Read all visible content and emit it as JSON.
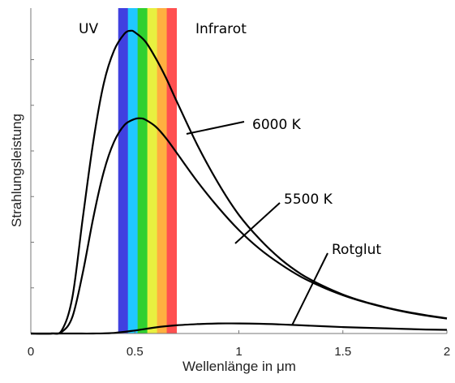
{
  "chart_data": {
    "type": "line",
    "title": "",
    "xlabel": "Wellenlänge in μm",
    "ylabel": "Strahlungsleistung",
    "xlim": [
      0,
      2
    ],
    "ylim": [
      0,
      1
    ],
    "x_ticks": [
      "0",
      "0.5",
      "1",
      "1.5",
      "2"
    ],
    "y_tick_values": [
      0.15,
      0.3,
      0.45,
      0.6,
      0.75,
      0.9
    ],
    "y_tick_labels_visible": false,
    "grid": false,
    "legend": "none",
    "spectrum_band": {
      "x_range": [
        0.42,
        0.7
      ],
      "colors": [
        "#4040e0",
        "#20c8ff",
        "#30d030",
        "#e8f040",
        "#ffb040",
        "#ff5050"
      ]
    },
    "series": [
      {
        "name": "6000 K",
        "x": [
          0.0,
          0.1,
          0.15,
          0.2,
          0.25,
          0.3,
          0.35,
          0.4,
          0.45,
          0.48,
          0.5,
          0.55,
          0.6,
          0.65,
          0.7,
          0.8,
          0.9,
          1.0,
          1.1,
          1.2,
          1.3,
          1.4,
          1.5,
          1.6,
          1.7,
          1.8,
          1.9,
          2.0
        ],
        "values": [
          0.0,
          0.0,
          0.012,
          0.12,
          0.38,
          0.63,
          0.82,
          0.93,
          0.985,
          0.995,
          0.99,
          0.96,
          0.905,
          0.84,
          0.765,
          0.62,
          0.495,
          0.39,
          0.31,
          0.245,
          0.195,
          0.158,
          0.128,
          0.105,
          0.087,
          0.072,
          0.06,
          0.05
        ]
      },
      {
        "name": "5500 K",
        "x": [
          0.0,
          0.1,
          0.15,
          0.2,
          0.25,
          0.3,
          0.35,
          0.4,
          0.45,
          0.5,
          0.53,
          0.55,
          0.6,
          0.65,
          0.7,
          0.8,
          0.9,
          1.0,
          1.1,
          1.2,
          1.3,
          1.4,
          1.5,
          1.6,
          1.7,
          1.8,
          1.9,
          2.0
        ],
        "values": [
          0.0,
          0.0,
          0.006,
          0.055,
          0.2,
          0.38,
          0.53,
          0.63,
          0.685,
          0.705,
          0.707,
          0.703,
          0.68,
          0.642,
          0.595,
          0.5,
          0.415,
          0.34,
          0.278,
          0.228,
          0.186,
          0.153,
          0.126,
          0.104,
          0.086,
          0.071,
          0.059,
          0.049
        ]
      },
      {
        "name": "Rotglut",
        "x": [
          0.0,
          0.2,
          0.3,
          0.4,
          0.5,
          0.6,
          0.7,
          0.8,
          0.9,
          1.0,
          1.1,
          1.2,
          1.3,
          1.4,
          1.5,
          1.6,
          1.7,
          1.8,
          1.9,
          2.0
        ],
        "values": [
          0.0,
          0.0,
          0.0,
          0.002,
          0.01,
          0.02,
          0.027,
          0.031,
          0.033,
          0.033,
          0.032,
          0.03,
          0.027,
          0.024,
          0.021,
          0.019,
          0.017,
          0.015,
          0.013,
          0.012
        ]
      }
    ],
    "annotations": [
      {
        "text": "UV"
      },
      {
        "text": "Infrarot"
      },
      {
        "text": "6000 K"
      },
      {
        "text": "5500 K"
      },
      {
        "text": "Rotglut"
      }
    ]
  }
}
